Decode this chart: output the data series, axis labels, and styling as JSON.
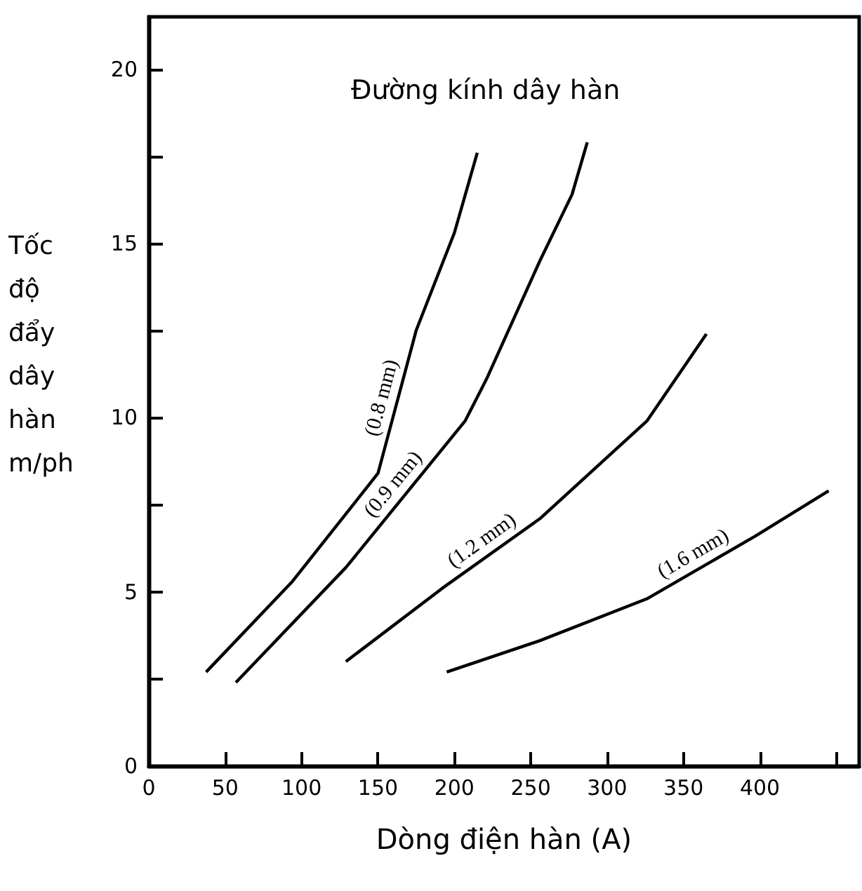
{
  "chart_data": {
    "type": "line",
    "xlabel": "Dòng điện hàn (A)",
    "ylabel": "Tốc độ đẩy dây hàn m/ph",
    "legend_title": "Đường kính dây hàn",
    "xlim": [
      0,
      465
    ],
    "xticks": [
      0,
      50,
      100,
      150,
      200,
      250,
      300,
      350,
      400,
      {
        "value": 450,
        "label": null
      }
    ],
    "ylim": [
      0,
      21.5
    ],
    "yticks": [
      0,
      {
        "value": 2.5,
        "label": null
      },
      5,
      {
        "value": 7.5,
        "label": null
      },
      10,
      {
        "value": 12.5,
        "label": null
      },
      15,
      {
        "value": 17.5,
        "label": null
      },
      20
    ],
    "grid": false,
    "legend": false,
    "marker": "none",
    "line_style": "solid",
    "series": [
      {
        "name": "(0.8 mm)",
        "color": "#000000",
        "x": [
          37.5,
          94,
          150,
          175,
          200,
          215
        ],
        "values": [
          2.7,
          5.3,
          8.4,
          12.5,
          15.3,
          17.6
        ]
      },
      {
        "name": "(0.9 mm)",
        "color": "#000000",
        "x": [
          57,
          129,
          207,
          221,
          256,
          277,
          287
        ],
        "values": [
          2.4,
          5.7,
          9.9,
          11.1,
          14.5,
          16.4,
          17.9
        ]
      },
      {
        "name": "(1.2 mm)",
        "color": "#000000",
        "x": [
          129,
          192,
          256,
          326,
          365
        ],
        "values": [
          3.0,
          5.1,
          7.1,
          9.9,
          12.4
        ]
      },
      {
        "name": "(1.6 mm)",
        "color": "#000000",
        "x": [
          195,
          256,
          326,
          397,
          445
        ],
        "values": [
          2.7,
          3.6,
          4.8,
          6.6,
          7.9
        ]
      }
    ]
  }
}
